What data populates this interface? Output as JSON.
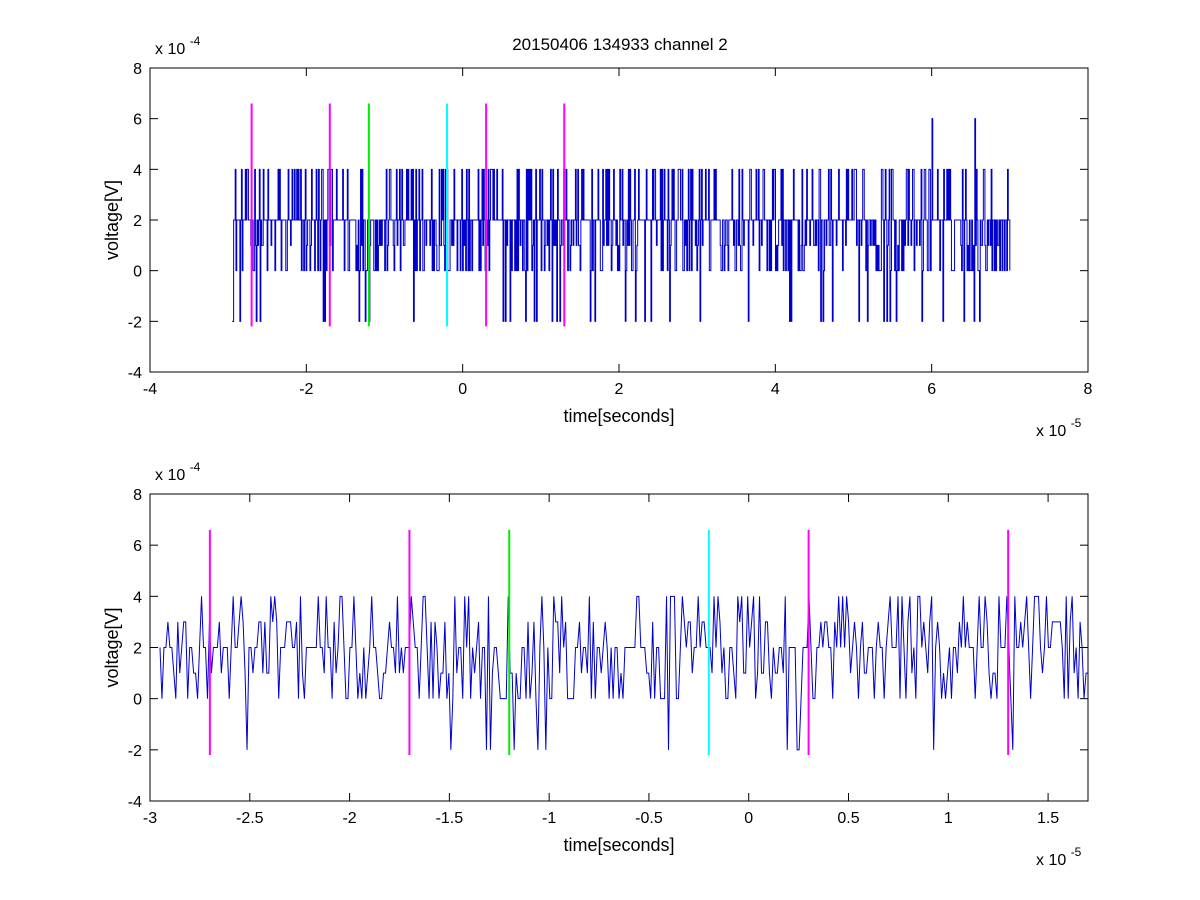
{
  "figure_title": "20150406 134933 channel 2",
  "colors": {
    "background": "#ffffff",
    "axis": "#000000",
    "signal": "#0000cc",
    "magenta": "#ff00ff",
    "green": "#00ee00",
    "cyan": "#00ffff"
  },
  "chart_data": [
    {
      "type": "line",
      "title": "20150406 134933 channel 2",
      "xlabel": "time[seconds]",
      "ylabel": "voltage[V]",
      "x_exponent": "x 10",
      "x_exponent_power": "-5",
      "y_exponent": "x 10",
      "y_exponent_power": "-4",
      "xlim": [
        -4,
        8
      ],
      "ylim": [
        -4,
        8
      ],
      "x_ticks": [
        -4,
        -2,
        0,
        2,
        4,
        6,
        8
      ],
      "x_tick_labels": [
        "-4",
        "-2",
        "0",
        "2",
        "4",
        "6",
        "8"
      ],
      "y_ticks": [
        -4,
        -2,
        0,
        2,
        4,
        6,
        8
      ],
      "y_tick_labels": [
        "-4",
        "-2",
        "0",
        "2",
        "4",
        "6",
        "8"
      ],
      "grid": false,
      "series": [
        {
          "x_range": [
            -2.95,
            7.0
          ],
          "values_quantized_to": [
            -2,
            0,
            1,
            2,
            4,
            6
          ],
          "baseline": 2,
          "color": "#0000cc",
          "note_peaks": [
            [
              6.0,
              6
            ],
            [
              6.55,
              6
            ]
          ]
        }
      ],
      "markers": [
        {
          "x": -2.7,
          "y_range": [
            -2.2,
            6.6
          ],
          "color": "#ff00ff"
        },
        {
          "x": -1.7,
          "y_range": [
            -2.2,
            6.6
          ],
          "color": "#ff00ff"
        },
        {
          "x": -1.2,
          "y_range": [
            -2.2,
            6.6
          ],
          "color": "#00ee00"
        },
        {
          "x": -0.2,
          "y_range": [
            -2.2,
            6.6
          ],
          "color": "#00ffff"
        },
        {
          "x": 0.3,
          "y_range": [
            -2.2,
            6.6
          ],
          "color": "#ff00ff"
        },
        {
          "x": 1.3,
          "y_range": [
            -2.2,
            6.6
          ],
          "color": "#ff00ff"
        }
      ]
    },
    {
      "type": "line",
      "xlabel": "time[seconds]",
      "ylabel": "voltage[V]",
      "x_exponent": "x 10",
      "x_exponent_power": "-5",
      "y_exponent": "x 10",
      "y_exponent_power": "-4",
      "xlim": [
        -3.0,
        1.7
      ],
      "ylim": [
        -4,
        8
      ],
      "x_ticks": [
        -3,
        -2.5,
        -2,
        -1.5,
        -1,
        -0.5,
        0,
        0.5,
        1,
        1.5
      ],
      "x_tick_labels": [
        "-3",
        "-2.5",
        "-2",
        "-1.5",
        "-1",
        "-0.5",
        "0",
        "0.5",
        "1",
        "1.5"
      ],
      "y_ticks": [
        -4,
        -2,
        0,
        2,
        4,
        6,
        8
      ],
      "y_tick_labels": [
        "-4",
        "-2",
        "0",
        "2",
        "4",
        "6",
        "8"
      ],
      "grid": false,
      "series": [
        {
          "x_range": [
            -2.95,
            1.7
          ],
          "values_quantized_to": [
            -2,
            0,
            1,
            2,
            3,
            4
          ],
          "baseline": 2,
          "color": "#0000cc"
        }
      ],
      "markers": [
        {
          "x": -2.7,
          "y_range": [
            -2.2,
            6.6
          ],
          "color": "#ff00ff"
        },
        {
          "x": -1.7,
          "y_range": [
            -2.2,
            6.6
          ],
          "color": "#ff00ff"
        },
        {
          "x": -1.2,
          "y_range": [
            -2.2,
            6.6
          ],
          "color": "#00ee00"
        },
        {
          "x": -0.2,
          "y_range": [
            -2.2,
            6.6
          ],
          "color": "#00ffff"
        },
        {
          "x": 0.3,
          "y_range": [
            -2.2,
            6.6
          ],
          "color": "#ff00ff"
        },
        {
          "x": 1.3,
          "y_range": [
            -2.2,
            6.6
          ],
          "color": "#ff00ff"
        }
      ]
    }
  ]
}
